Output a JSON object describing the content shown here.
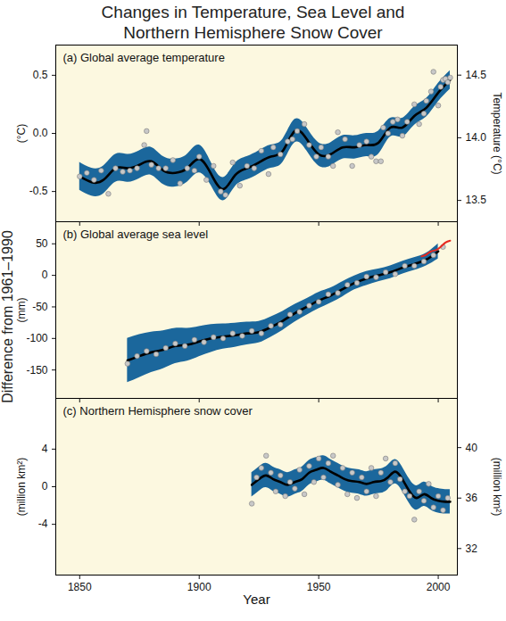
{
  "title": [
    "Changes in Temperature, Sea Level and",
    "Northern Hemisphere Snow Cover"
  ],
  "y_label": "Difference from 1961–1990",
  "chart_data": [
    {
      "type": "line",
      "title": "(a) Global average temperature",
      "y_label": "(°C)",
      "y2_label": "Temperature (°C)",
      "xlim": [
        1840,
        2008
      ],
      "xticks": [
        1850,
        1900,
        1950,
        2000
      ],
      "tick_labels": "y",
      "ylim": [
        -0.76,
        0.76
      ],
      "yticks": [
        -0.5,
        {
          "value": 0,
          "label": "0.0"
        },
        0.5
      ],
      "y2lim": [
        13.33,
        14.74
      ],
      "y2ticks": [
        13.5,
        {
          "value": 14,
          "label": "14.0"
        },
        14.5
      ],
      "series": [
        {
          "type": "area",
          "color": "#1b679c",
          "x": [
            1850,
            1855,
            1860,
            1865,
            1870,
            1875,
            1880,
            1885,
            1890,
            1895,
            1900,
            1905,
            1910,
            1915,
            1920,
            1925,
            1930,
            1935,
            1940,
            1945,
            1950,
            1955,
            1960,
            1965,
            1970,
            1975,
            1980,
            1985,
            1990,
            1995,
            2000,
            2005
          ],
          "lower": [
            -0.49,
            -0.54,
            -0.52,
            -0.42,
            -0.42,
            -0.39,
            -0.36,
            -0.44,
            -0.46,
            -0.42,
            -0.34,
            -0.45,
            -0.58,
            -0.46,
            -0.4,
            -0.35,
            -0.3,
            -0.25,
            -0.08,
            -0.15,
            -0.28,
            -0.28,
            -0.22,
            -0.22,
            -0.2,
            -0.18,
            -0.03,
            -0.03,
            0.07,
            0.14,
            0.27,
            0.38
          ],
          "upper": [
            -0.25,
            -0.3,
            -0.28,
            -0.18,
            -0.18,
            -0.15,
            -0.12,
            -0.2,
            -0.22,
            -0.18,
            -0.1,
            -0.25,
            -0.38,
            -0.26,
            -0.2,
            -0.15,
            -0.1,
            -0.05,
            0.12,
            0.05,
            -0.08,
            -0.08,
            -0.02,
            -0.02,
            0.0,
            0.02,
            0.13,
            0.13,
            0.23,
            0.3,
            0.43,
            0.54
          ]
        },
        {
          "type": "line",
          "color": "#000000",
          "x": [
            1850,
            1855,
            1860,
            1865,
            1870,
            1875,
            1880,
            1885,
            1890,
            1895,
            1900,
            1905,
            1910,
            1915,
            1920,
            1925,
            1930,
            1935,
            1940,
            1945,
            1950,
            1955,
            1960,
            1965,
            1970,
            1975,
            1980,
            1985,
            1990,
            1995,
            2000,
            2005
          ],
          "values": [
            -0.37,
            -0.42,
            -0.4,
            -0.3,
            -0.3,
            -0.27,
            -0.24,
            -0.32,
            -0.34,
            -0.3,
            -0.22,
            -0.35,
            -0.48,
            -0.36,
            -0.3,
            -0.25,
            -0.2,
            -0.15,
            0.02,
            -0.05,
            -0.18,
            -0.18,
            -0.12,
            -0.12,
            -0.1,
            -0.08,
            0.05,
            0.05,
            0.15,
            0.22,
            0.35,
            0.46
          ]
        },
        {
          "type": "scatter",
          "color": "#c8c8c8",
          "marker": "circle",
          "x": [
            1850,
            1853,
            1856,
            1859,
            1862,
            1865,
            1868,
            1871,
            1874,
            1877,
            1878,
            1880,
            1883,
            1886,
            1889,
            1892,
            1895,
            1898,
            1900,
            1903,
            1906,
            1909,
            1911,
            1914,
            1917,
            1920,
            1923,
            1926,
            1929,
            1931,
            1934,
            1937,
            1939,
            1941,
            1944,
            1946,
            1949,
            1951,
            1954,
            1956,
            1958,
            1961,
            1964,
            1967,
            1970,
            1972,
            1974,
            1976,
            1977,
            1979,
            1981,
            1983,
            1985,
            1987,
            1990,
            1992,
            1994,
            1995,
            1997,
            1998,
            2000,
            2001,
            2002,
            2003,
            2004,
            2005
          ],
          "values": [
            -0.37,
            -0.34,
            -0.4,
            -0.32,
            -0.52,
            -0.3,
            -0.33,
            -0.32,
            -0.3,
            -0.1,
            0.02,
            -0.27,
            -0.3,
            -0.3,
            -0.23,
            -0.43,
            -0.3,
            -0.32,
            -0.2,
            -0.4,
            -0.28,
            -0.5,
            -0.53,
            -0.25,
            -0.45,
            -0.28,
            -0.3,
            -0.15,
            -0.35,
            -0.12,
            -0.18,
            -0.07,
            -0.05,
            0.02,
            0.08,
            -0.1,
            -0.2,
            -0.12,
            -0.2,
            -0.28,
            0.01,
            -0.05,
            -0.28,
            -0.1,
            -0.07,
            -0.2,
            -0.24,
            -0.24,
            0.05,
            0.0,
            0.1,
            0.12,
            -0.02,
            0.1,
            0.25,
            0.08,
            0.17,
            0.28,
            0.36,
            0.53,
            0.24,
            0.4,
            0.46,
            0.47,
            0.44,
            0.48
          ]
        }
      ]
    },
    {
      "type": "line",
      "title": "(b) Global average sea level",
      "y_label": "(mm)",
      "xlim": [
        1840,
        2008
      ],
      "xticks": [
        1850,
        1900,
        1950,
        2000
      ],
      "tick_labels": "y",
      "ylim": [
        -195,
        85
      ],
      "yticks": [
        -150,
        -100,
        -50,
        0,
        50
      ],
      "series": [
        {
          "type": "area",
          "color": "#1b679c",
          "x": [
            1870,
            1875,
            1880,
            1885,
            1890,
            1895,
            1900,
            1905,
            1910,
            1915,
            1920,
            1925,
            1930,
            1935,
            1940,
            1945,
            1950,
            1955,
            1960,
            1965,
            1970,
            1975,
            1980,
            1985,
            1990,
            1995,
            2000
          ],
          "lower": [
            -170,
            -162,
            -154,
            -148,
            -140,
            -136,
            -129,
            -122,
            -117,
            -114,
            -110,
            -107,
            -98,
            -87,
            -74,
            -63,
            -53,
            -44,
            -34,
            -23,
            -16,
            -10,
            -5,
            2,
            8,
            15,
            26
          ],
          "upper": [
            -100,
            -94,
            -90,
            -88,
            -84,
            -84,
            -81,
            -78,
            -77,
            -76,
            -74,
            -73,
            -66,
            -57,
            -46,
            -37,
            -27,
            -20,
            -10,
            -1,
            6,
            10,
            15,
            22,
            28,
            35,
            50
          ]
        },
        {
          "type": "line",
          "color": "#000000",
          "x": [
            1870,
            1875,
            1880,
            1885,
            1890,
            1895,
            1900,
            1905,
            1910,
            1915,
            1920,
            1925,
            1930,
            1935,
            1940,
            1945,
            1950,
            1955,
            1960,
            1965,
            1970,
            1975,
            1980,
            1985,
            1990,
            1995,
            2000
          ],
          "values": [
            -135,
            -128,
            -122,
            -118,
            -112,
            -110,
            -105,
            -100,
            -97,
            -95,
            -92,
            -90,
            -82,
            -72,
            -60,
            -50,
            -40,
            -32,
            -22,
            -12,
            -5,
            0,
            5,
            12,
            18,
            25,
            38
          ]
        },
        {
          "type": "scatter",
          "color": "#c8c8c8",
          "marker": "circle",
          "x": [
            1870,
            1874,
            1878,
            1882,
            1886,
            1890,
            1894,
            1898,
            1902,
            1906,
            1910,
            1914,
            1918,
            1922,
            1926,
            1930,
            1934,
            1938,
            1942,
            1946,
            1950,
            1954,
            1958,
            1962,
            1966,
            1970,
            1974,
            1978,
            1982,
            1986,
            1990,
            1994,
            1998,
            2002
          ],
          "values": [
            -140,
            -128,
            -120,
            -125,
            -115,
            -108,
            -112,
            -102,
            -106,
            -98,
            -100,
            -92,
            -96,
            -88,
            -92,
            -80,
            -78,
            -62,
            -58,
            -48,
            -42,
            -30,
            -28,
            -15,
            -12,
            -2,
            -3,
            5,
            2,
            15,
            15,
            22,
            32,
            45
          ]
        },
        {
          "type": "line",
          "color": "#e8281e",
          "x": [
            1993,
            1995,
            1997,
            1999,
            2001,
            2003,
            2005
          ],
          "values": [
            30,
            33,
            38,
            40,
            45,
            52,
            55
          ]
        }
      ]
    },
    {
      "type": "line",
      "title": "(c) Northern Hemisphere snow cover",
      "y_label": "(million km²)",
      "y2_label": "(million km²)",
      "x_label": "Year",
      "xlim": [
        1840,
        2008
      ],
      "xticks": [
        1850,
        1900,
        1950,
        2000
      ],
      "ylim": [
        -9.4,
        9.4
      ],
      "yticks": [
        -4,
        0,
        4
      ],
      "y2lim": [
        29.9,
        43.9
      ],
      "y2ticks": [
        32,
        36,
        40
      ],
      "series": [
        {
          "type": "area",
          "color": "#1b679c",
          "x": [
            1922,
            1925,
            1928,
            1931,
            1934,
            1937,
            1940,
            1943,
            1946,
            1949,
            1952,
            1955,
            1958,
            1961,
            1964,
            1967,
            1970,
            1973,
            1976,
            1979,
            1982,
            1985,
            1988,
            1991,
            1994,
            1997,
            2000,
            2003,
            2005
          ],
          "lower": [
            -1.1,
            -0.5,
            -0.1,
            -0.5,
            -0.8,
            -1.1,
            -0.8,
            -0.5,
            0.2,
            0.5,
            0.7,
            0.3,
            -0.1,
            -0.5,
            -0.7,
            -0.8,
            -1.0,
            -0.8,
            -0.7,
            -0.3,
            0.3,
            -0.5,
            -1.8,
            -2.5,
            -2.1,
            -2.5,
            -2.8,
            -2.9,
            -2.9
          ],
          "upper": [
            1.5,
            2.1,
            2.5,
            2.1,
            1.8,
            1.5,
            1.8,
            2.1,
            2.8,
            3.1,
            3.3,
            2.9,
            2.5,
            2.1,
            1.9,
            1.8,
            1.6,
            1.8,
            1.9,
            2.3,
            2.9,
            2.1,
            0.8,
            0.1,
            0.5,
            0.1,
            -0.2,
            -0.3,
            -0.3
          ]
        },
        {
          "type": "line",
          "color": "#000000",
          "x": [
            1922,
            1925,
            1928,
            1931,
            1934,
            1937,
            1940,
            1943,
            1946,
            1949,
            1952,
            1955,
            1958,
            1961,
            1964,
            1967,
            1970,
            1973,
            1976,
            1979,
            1982,
            1985,
            1988,
            1991,
            1994,
            1997,
            2000,
            2003,
            2005
          ],
          "values": [
            0.2,
            0.8,
            1.2,
            0.8,
            0.5,
            0.2,
            0.5,
            0.8,
            1.5,
            1.8,
            2.0,
            1.6,
            1.2,
            0.8,
            0.6,
            0.5,
            0.3,
            0.5,
            0.6,
            1.0,
            1.6,
            0.8,
            -0.5,
            -1.2,
            -0.8,
            -1.2,
            -1.5,
            -1.6,
            -1.6
          ]
        },
        {
          "type": "scatter",
          "color": "#c8c8c8",
          "marker": "circle",
          "x": [
            1922,
            1924,
            1926,
            1928,
            1930,
            1932,
            1934,
            1936,
            1938,
            1940,
            1942,
            1944,
            1946,
            1948,
            1950,
            1952,
            1954,
            1956,
            1958,
            1960,
            1962,
            1964,
            1966,
            1968,
            1970,
            1972,
            1974,
            1976,
            1978,
            1980,
            1982,
            1984,
            1986,
            1988,
            1990,
            1992,
            1994,
            1996,
            1998,
            2000,
            2002,
            2004
          ],
          "values": [
            -1.8,
            1.0,
            2.0,
            3.3,
            1.5,
            -0.5,
            1.2,
            -1.0,
            0.5,
            -0.2,
            1.8,
            -0.8,
            2.2,
            0.5,
            3.0,
            1.0,
            2.5,
            3.3,
            0.2,
            2.0,
            -0.8,
            1.5,
            -1.2,
            1.0,
            -0.5,
            2.0,
            -1.0,
            1.5,
            3.0,
            0.5,
            2.5,
            0.8,
            -0.5,
            -1.0,
            -3.5,
            -0.5,
            -1.5,
            0.3,
            -2.2,
            -1.0,
            -2.5,
            -1.2
          ]
        }
      ]
    }
  ]
}
